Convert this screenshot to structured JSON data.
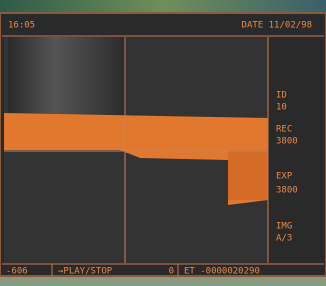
{
  "header": {
    "time": "16:05",
    "date": "DATE 11/02/98"
  },
  "side_panel": {
    "items": [
      {
        "label": "ID",
        "value": "10"
      },
      {
        "label": "REC",
        "value": "3800"
      },
      {
        "label": "EXP",
        "value": "3800"
      },
      {
        "label": "IMG",
        "value": "A/3"
      }
    ]
  },
  "footer": {
    "position": "-606",
    "action": "→PLAY/STOP",
    "counter": "0",
    "elapsed": "ET -0000020290"
  }
}
